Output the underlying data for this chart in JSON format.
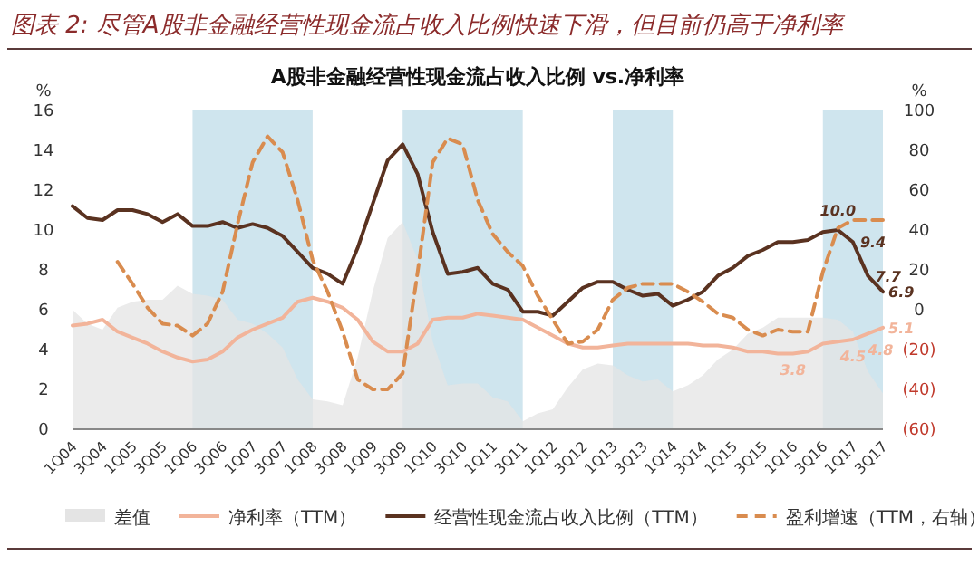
{
  "chart_data": {
    "type": "line",
    "title": "图表 2: 尽管A股非金融经营性现金流占收入比例快速下滑，但目前仍高于净利率",
    "subtitle": "A股非金融经营性现金流占收入比例 vs.净利率",
    "ylabel": "%",
    "y2label": "%",
    "categories": [
      "1Q04",
      null,
      "3Q04",
      null,
      "1Q05",
      null,
      "3Q05",
      null,
      "1Q06",
      null,
      "3Q06",
      null,
      "1Q07",
      null,
      "3Q07",
      null,
      "1Q08",
      null,
      "3Q08",
      null,
      "1Q09",
      null,
      "3Q09",
      null,
      "1Q10",
      null,
      "3Q10",
      null,
      "1Q11",
      null,
      "3Q11",
      null,
      "1Q12",
      null,
      "3Q12",
      null,
      "1Q13",
      null,
      "3Q13",
      null,
      "1Q14",
      null,
      "3Q14",
      null,
      "1Q15",
      null,
      "3Q15",
      null,
      "1Q16",
      null,
      "3Q16",
      null,
      "1Q17",
      null,
      "3Q17"
    ],
    "ylim": [
      0,
      16
    ],
    "yticks": [
      0,
      2,
      4,
      6,
      8,
      10,
      12,
      14,
      16
    ],
    "y2lim": [
      -60,
      100
    ],
    "y2ticks": [
      100,
      80,
      60,
      40,
      20,
      0,
      {
        "value": -20,
        "label": "(20)"
      },
      {
        "value": -40,
        "label": "(40)"
      },
      {
        "value": -60,
        "label": "(60)"
      }
    ],
    "legend": "bottom",
    "series": [
      {
        "name": "差值",
        "type": "area",
        "color": "#e4e4e4",
        "values": [
          6.0,
          5.3,
          5.0,
          6.1,
          6.4,
          6.5,
          6.5,
          7.2,
          6.8,
          6.7,
          6.5,
          5.5,
          5.3,
          4.8,
          4.1,
          2.5,
          1.5,
          1.4,
          1.2,
          3.6,
          6.9,
          9.6,
          10.4,
          8.5,
          4.4,
          2.2,
          2.3,
          2.3,
          1.6,
          1.4,
          0.4,
          0.8,
          1.0,
          2.1,
          3.0,
          3.3,
          3.2,
          2.7,
          2.4,
          2.5,
          1.9,
          2.2,
          2.7,
          3.5,
          4.0,
          4.8,
          5.1,
          5.6,
          5.6,
          5.6,
          5.6,
          5.5,
          4.9,
          2.9,
          1.8
        ]
      },
      {
        "name": "净利率（TTM）",
        "color": "#f2b49a",
        "values": [
          5.2,
          5.3,
          5.5,
          4.9,
          4.6,
          4.3,
          3.9,
          3.6,
          3.4,
          3.5,
          3.9,
          4.6,
          5.0,
          5.3,
          5.6,
          6.4,
          6.6,
          6.4,
          6.1,
          5.5,
          4.4,
          3.9,
          3.9,
          4.3,
          5.5,
          5.6,
          5.6,
          5.8,
          5.7,
          5.6,
          5.5,
          5.1,
          4.7,
          4.3,
          4.1,
          4.1,
          4.2,
          4.3,
          4.3,
          4.3,
          4.3,
          4.3,
          4.2,
          4.2,
          4.1,
          3.9,
          3.9,
          3.8,
          3.8,
          3.9,
          4.3,
          4.4,
          4.5,
          4.8,
          5.1
        ]
      },
      {
        "name": "经营性现金流占收入比例（TTM）",
        "color": "#5a3220",
        "values": [
          11.2,
          10.6,
          10.5,
          11.0,
          11.0,
          10.8,
          10.4,
          10.8,
          10.2,
          10.2,
          10.4,
          10.1,
          10.3,
          10.1,
          9.7,
          8.9,
          8.1,
          7.8,
          7.3,
          9.1,
          11.3,
          13.5,
          14.3,
          12.8,
          9.9,
          7.8,
          7.9,
          8.1,
          7.3,
          7.0,
          5.9,
          5.9,
          5.7,
          6.4,
          7.1,
          7.4,
          7.4,
          7.0,
          6.7,
          6.8,
          6.2,
          6.5,
          6.9,
          7.7,
          8.1,
          8.7,
          9.0,
          9.4,
          9.4,
          9.5,
          9.9,
          10.0,
          9.4,
          7.7,
          6.9
        ]
      },
      {
        "name": "盈利增速（TTM，右轴）",
        "color": "#d98c4f",
        "axis": "y2",
        "line_style": "dashed",
        "values": [
          null,
          null,
          null,
          24,
          13,
          1,
          -7,
          -8,
          -13,
          -7,
          9,
          43,
          74,
          87,
          79,
          55,
          25,
          9,
          -11,
          -35,
          -40,
          -40,
          -32,
          19,
          74,
          86,
          83,
          55,
          38,
          29,
          22,
          7,
          -5,
          -17,
          -16,
          -10,
          5,
          11,
          13,
          13,
          13,
          9,
          4,
          -2,
          -4,
          -10,
          -13,
          -10,
          -11,
          -11,
          19,
          41,
          45,
          45,
          45
        ]
      }
    ],
    "bands": [
      {
        "axis": "x",
        "from": "1Q06",
        "to": "1Q08",
        "color": "#cfe5ee"
      },
      {
        "axis": "x",
        "from": "3Q09",
        "to": "3Q11",
        "color": "#cfe5ee"
      },
      {
        "axis": "x",
        "from": "1Q13",
        "to": "1Q14",
        "color": "#cfe5ee"
      },
      {
        "axis": "x",
        "from": "3Q16",
        "to": "3Q17",
        "color": "#cfe5ee"
      }
    ],
    "annotations": [
      {
        "text": "10.0",
        "y": 10.0
      },
      {
        "text": "9.4",
        "x": "1Q17",
        "y": 9.4
      },
      {
        "text": "7.7",
        "y": 7.7
      },
      {
        "text": "6.9",
        "x": "3Q17",
        "y": 6.9
      },
      {
        "text": "3.8",
        "x": "1Q16",
        "y": 3.8
      },
      {
        "text": "4.5",
        "x": "1Q17",
        "y": 4.5
      },
      {
        "text": "4.8",
        "y": 4.8
      },
      {
        "text": "5.1",
        "x": "3Q17",
        "y": 5.1
      }
    ]
  }
}
